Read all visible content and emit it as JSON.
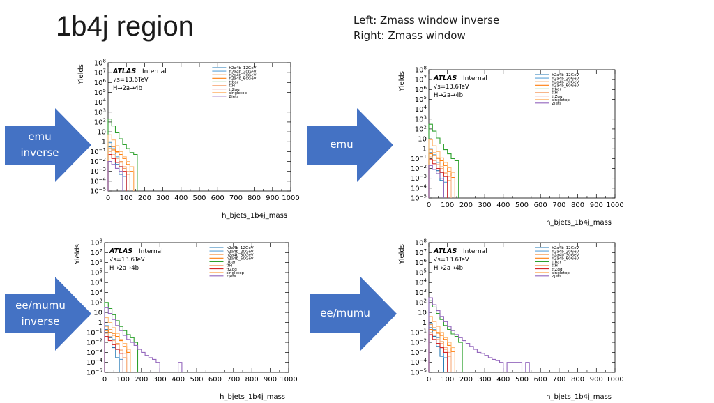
{
  "slide": {
    "title": "1b4j region",
    "subtitle_lines": [
      "Left: Zmass window inverse",
      "Right: Zmass window"
    ]
  },
  "arrows": [
    {
      "label_lines": [
        "emu",
        "inverse"
      ]
    },
    {
      "label_lines": [
        "emu"
      ]
    },
    {
      "label_lines": [
        "ee/mumu",
        "inverse"
      ]
    },
    {
      "label_lines": [
        "ee/mumu"
      ]
    }
  ],
  "colors": {
    "arrow_fill": "#4472c4",
    "arrow_text": "#ffffff"
  },
  "plot_common": {
    "atlas_label": "ATLAS",
    "internal_label": "Internal",
    "energy_label": "√s=13.6TeV",
    "process_label": "H→2a→4b",
    "xlabel": "h_bjets_1b4j_mass",
    "ylabel": "Yields",
    "x_ticks": [
      "0",
      "100",
      "200",
      "300",
      "400",
      "500",
      "600",
      "700",
      "800",
      "900",
      "1000"
    ],
    "y_ticks": [
      {
        "base": "10",
        "exp": "8"
      },
      {
        "base": "10",
        "exp": "7"
      },
      {
        "base": "10",
        "exp": "6"
      },
      {
        "base": "10",
        "exp": "5"
      },
      {
        "base": "10",
        "exp": "4"
      },
      {
        "base": "10",
        "exp": "3"
      },
      {
        "base": "10",
        "exp": "2"
      },
      {
        "base": "10",
        "exp": ""
      },
      {
        "base": "1",
        "exp": ""
      },
      {
        "base": "10",
        "exp": "−1"
      },
      {
        "base": "10",
        "exp": "−2"
      },
      {
        "base": "10",
        "exp": "−3"
      },
      {
        "base": "10",
        "exp": "−4"
      },
      {
        "base": "10",
        "exp": "−5"
      }
    ]
  },
  "chart_data": [
    {
      "type": "line",
      "panel": "emu inverse",
      "xlabel": "h_bjets_1b4j_mass",
      "ylabel": "Yields",
      "log_y": true,
      "xlim": [
        0,
        1000
      ],
      "ylim": [
        1e-05,
        100000000
      ],
      "legend_position": "top-right",
      "x": [
        10,
        30,
        50,
        70,
        90,
        110,
        130,
        150,
        170
      ],
      "series": [
        {
          "name": "h2a4b_12GeV",
          "color": "#1f77b4",
          "values": [
            0.3,
            0.05,
            0.005,
            0.0005,
            null,
            null,
            null,
            null,
            null
          ]
        },
        {
          "name": "h2a4b_20GeV",
          "color": "#5da5da",
          "values": [
            0.8,
            0.2,
            0.03,
            0.003,
            0.0003,
            null,
            null,
            null,
            null
          ]
        },
        {
          "name": "h2a4b_30GeV",
          "color": "#f5a25d",
          "values": [
            0.6,
            0.3,
            0.08,
            0.01,
            0.002,
            0.0005,
            null,
            null,
            null
          ]
        },
        {
          "name": "h2a4b_60GeV",
          "color": "#ff7f0e",
          "values": [
            0.2,
            0.15,
            0.1,
            0.05,
            0.02,
            0.005,
            0.001,
            null,
            null
          ]
        },
        {
          "name": "ttbar",
          "color": "#2ca02c",
          "values": [
            200,
            40,
            8,
            2,
            0.5,
            0.2,
            0.08,
            0.05,
            null
          ]
        },
        {
          "name": "ttH",
          "color": "#f8b58b",
          "values": [
            0.1,
            0.05,
            0.02,
            0.008,
            0.003,
            0.001,
            null,
            null,
            null
          ]
        },
        {
          "name": "ttZqq",
          "color": "#d62728",
          "values": [
            0.05,
            0.02,
            0.008,
            0.003,
            0.001,
            null,
            null,
            null,
            null
          ]
        },
        {
          "name": "singletop",
          "color": "#ffbb78",
          "values": [
            5,
            1.5,
            0.4,
            0.1,
            0.03,
            0.01,
            0.003,
            null,
            null
          ]
        },
        {
          "name": "Zjets",
          "color": "#9467bd",
          "values": [
            0.01,
            0.005,
            0.002,
            0.001,
            null,
            null,
            null,
            null,
            null
          ]
        }
      ]
    },
    {
      "type": "line",
      "panel": "emu",
      "xlabel": "h_bjets_1b4j_mass",
      "ylabel": "Yields",
      "log_y": true,
      "xlim": [
        0,
        1000
      ],
      "ylim": [
        1e-05,
        100000000
      ],
      "legend_position": "top-right",
      "x": [
        10,
        30,
        50,
        70,
        90,
        110,
        130,
        150
      ],
      "series": [
        {
          "name": "h2a4b_12GeV",
          "color": "#1f77b4",
          "values": [
            0.4,
            0.06,
            0.006,
            0.0006,
            null,
            null,
            null,
            null
          ]
        },
        {
          "name": "h2a4b_20GeV",
          "color": "#5da5da",
          "values": [
            1,
            0.25,
            0.04,
            0.004,
            0.0004,
            null,
            null,
            null
          ]
        },
        {
          "name": "h2a4b_30GeV",
          "color": "#f5a25d",
          "values": [
            0.8,
            0.4,
            0.1,
            0.015,
            0.003,
            0.0006,
            null,
            null
          ]
        },
        {
          "name": "h2a4b_60GeV",
          "color": "#ff7f0e",
          "values": [
            0.3,
            0.2,
            0.12,
            0.06,
            0.02,
            0.005,
            0.0012,
            null
          ]
        },
        {
          "name": "ttbar",
          "color": "#2ca02c",
          "values": [
            300,
            60,
            12,
            3,
            0.8,
            0.3,
            0.1,
            0.06
          ]
        },
        {
          "name": "ttH",
          "color": "#f8b58b",
          "values": [
            0.15,
            0.06,
            0.025,
            0.01,
            0.004,
            0.0015,
            null,
            null
          ]
        },
        {
          "name": "ttZqq",
          "color": "#d62728",
          "values": [
            0.08,
            0.03,
            0.01,
            0.004,
            0.0015,
            null,
            null,
            null
          ]
        },
        {
          "name": "singletop",
          "color": "#ffbb78",
          "values": [
            8,
            2,
            0.5,
            0.12,
            0.04,
            0.012,
            0.004,
            null
          ]
        },
        {
          "name": "Zjets",
          "color": "#9467bd",
          "values": [
            0.02,
            0.008,
            0.003,
            0.001,
            null,
            null,
            null,
            null
          ]
        }
      ]
    },
    {
      "type": "line",
      "panel": "ee/mumu inverse",
      "xlabel": "h_bjets_1b4j_mass",
      "ylabel": "Yields",
      "log_y": true,
      "xlim": [
        0,
        1000
      ],
      "ylim": [
        1e-05,
        100000000
      ],
      "legend_position": "top-right",
      "x": [
        10,
        30,
        50,
        70,
        90,
        110,
        130,
        150,
        170,
        190,
        210,
        230,
        250,
        270,
        290,
        410
      ],
      "series": [
        {
          "name": "h2a4b_12GeV",
          "color": "#1f77b4",
          "values": [
            0.2,
            0.03,
            0.003,
            0.0003,
            null,
            null,
            null,
            null,
            null,
            null,
            null,
            null,
            null,
            null,
            null,
            null
          ]
        },
        {
          "name": "h2a4b_20GeV",
          "color": "#5da5da",
          "values": [
            0.5,
            0.1,
            0.02,
            0.002,
            0.0002,
            null,
            null,
            null,
            null,
            null,
            null,
            null,
            null,
            null,
            null,
            null
          ]
        },
        {
          "name": "h2a4b_30GeV",
          "color": "#f5a25d",
          "values": [
            0.4,
            0.2,
            0.05,
            0.008,
            0.0015,
            0.0003,
            null,
            null,
            null,
            null,
            null,
            null,
            null,
            null,
            null,
            null
          ]
        },
        {
          "name": "h2a4b_60GeV",
          "color": "#ff7f0e",
          "values": [
            0.15,
            0.1,
            0.08,
            0.04,
            0.015,
            0.004,
            0.001,
            null,
            null,
            null,
            null,
            null,
            null,
            null,
            null,
            null
          ]
        },
        {
          "name": "ttbar",
          "color": "#2ca02c",
          "values": [
            100,
            25,
            6,
            1.5,
            0.4,
            0.15,
            0.06,
            0.03,
            0.01,
            null,
            null,
            null,
            null,
            null,
            null,
            null
          ]
        },
        {
          "name": "ttH",
          "color": "#f8b58b",
          "values": [
            0.08,
            0.04,
            0.015,
            0.006,
            0.002,
            0.0008,
            null,
            null,
            null,
            null,
            null,
            null,
            null,
            null,
            null,
            null
          ]
        },
        {
          "name": "ttZqq",
          "color": "#d62728",
          "values": [
            0.04,
            0.015,
            0.006,
            0.002,
            0.0008,
            null,
            null,
            null,
            null,
            null,
            null,
            null,
            null,
            null,
            null,
            null
          ]
        },
        {
          "name": "singletop",
          "color": "#ffbb78",
          "values": [
            3,
            1,
            0.3,
            0.08,
            0.02,
            0.008,
            0.002,
            null,
            null,
            null,
            null,
            null,
            null,
            null,
            null,
            null
          ]
        },
        {
          "name": "Zjets",
          "color": "#9467bd",
          "values": [
            30,
            8,
            2,
            0.5,
            0.15,
            0.05,
            0.02,
            0.01,
            0.005,
            0.002,
            0.001,
            0.0005,
            0.0003,
            0.0002,
            0.0001,
            0.0001
          ]
        }
      ]
    },
    {
      "type": "line",
      "panel": "ee/mumu",
      "xlabel": "h_bjets_1b4j_mass",
      "ylabel": "Yields",
      "log_y": true,
      "xlim": [
        0,
        1000
      ],
      "ylim": [
        1e-05,
        100000000
      ],
      "legend_position": "top-right",
      "x": [
        10,
        30,
        50,
        70,
        90,
        110,
        130,
        150,
        170,
        190,
        210,
        230,
        250,
        270,
        290,
        310,
        330,
        350,
        370,
        390,
        430,
        450,
        470,
        490,
        530
      ],
      "series": [
        {
          "name": "h2a4b_12GeV",
          "color": "#1f77b4",
          "values": [
            0.3,
            0.04,
            0.004,
            0.0004,
            null,
            null,
            null,
            null,
            null,
            null,
            null,
            null,
            null,
            null,
            null,
            null,
            null,
            null,
            null,
            null,
            null,
            null,
            null,
            null,
            null
          ]
        },
        {
          "name": "h2a4b_20GeV",
          "color": "#5da5da",
          "values": [
            0.8,
            0.2,
            0.03,
            0.003,
            0.0003,
            null,
            null,
            null,
            null,
            null,
            null,
            null,
            null,
            null,
            null,
            null,
            null,
            null,
            null,
            null,
            null,
            null,
            null,
            null,
            null
          ]
        },
        {
          "name": "h2a4b_30GeV",
          "color": "#f5a25d",
          "values": [
            0.6,
            0.3,
            0.08,
            0.012,
            0.002,
            0.0004,
            null,
            null,
            null,
            null,
            null,
            null,
            null,
            null,
            null,
            null,
            null,
            null,
            null,
            null,
            null,
            null,
            null,
            null,
            null
          ]
        },
        {
          "name": "h2a4b_60GeV",
          "color": "#ff7f0e",
          "values": [
            0.2,
            0.15,
            0.1,
            0.05,
            0.02,
            0.005,
            0.0012,
            null,
            null,
            null,
            null,
            null,
            null,
            null,
            null,
            null,
            null,
            null,
            null,
            null,
            null,
            null,
            null,
            null,
            null
          ]
        },
        {
          "name": "ttbar",
          "color": "#2ca02c",
          "values": [
            150,
            35,
            8,
            2,
            0.5,
            0.2,
            0.07,
            0.04,
            0.01,
            null,
            null,
            null,
            null,
            null,
            null,
            null,
            null,
            null,
            null,
            null,
            null,
            null,
            null,
            null,
            null
          ]
        },
        {
          "name": "ttH",
          "color": "#f8b58b",
          "values": [
            0.1,
            0.05,
            0.02,
            0.008,
            0.003,
            0.001,
            null,
            null,
            null,
            null,
            null,
            null,
            null,
            null,
            null,
            null,
            null,
            null,
            null,
            null,
            null,
            null,
            null,
            null,
            null
          ]
        },
        {
          "name": "ttZqq",
          "color": "#d62728",
          "values": [
            0.06,
            0.02,
            0.008,
            0.003,
            0.001,
            null,
            null,
            null,
            null,
            null,
            null,
            null,
            null,
            null,
            null,
            null,
            null,
            null,
            null,
            null,
            null,
            null,
            null,
            null,
            null
          ]
        },
        {
          "name": "singletop",
          "color": "#ffbb78",
          "values": [
            4,
            1.2,
            0.4,
            0.1,
            0.03,
            0.01,
            0.003,
            null,
            null,
            null,
            null,
            null,
            null,
            null,
            null,
            null,
            null,
            null,
            null,
            null,
            null,
            null,
            null,
            null,
            null
          ]
        },
        {
          "name": "Zjets",
          "color": "#9467bd",
          "values": [
            300,
            60,
            15,
            4,
            1.2,
            0.4,
            0.15,
            0.06,
            0.03,
            0.015,
            0.008,
            0.004,
            0.002,
            0.001,
            0.0008,
            0.0005,
            0.0003,
            0.0002,
            0.00015,
            0.0001,
            0.0001,
            0.0001,
            0.0001,
            0.0001,
            0.0001
          ]
        }
      ]
    }
  ]
}
